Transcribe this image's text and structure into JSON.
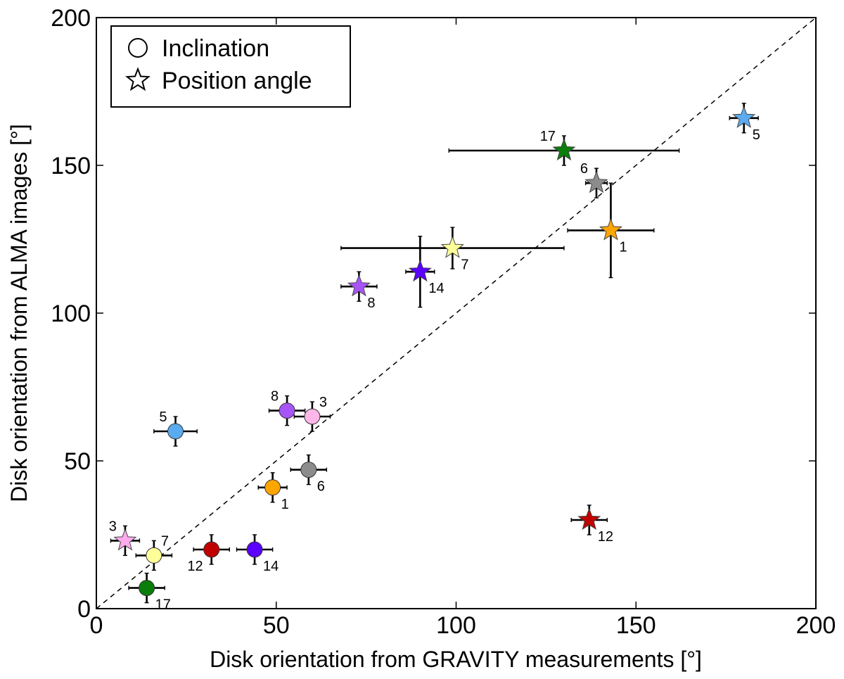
{
  "chart_data": {
    "type": "scatter",
    "xlabel": "Disk orientation from GRAVITY measurements [°]",
    "ylabel": "Disk orientation from ALMA images [°]",
    "xlim": [
      0,
      200
    ],
    "ylim": [
      0,
      200
    ],
    "xticks": [
      "0",
      "50",
      "100",
      "150",
      "200"
    ],
    "yticks": [
      "0",
      "50",
      "100",
      "150",
      "200"
    ],
    "reference_line": "y = x (dashed)",
    "legend": {
      "position": "top-left",
      "entries": [
        {
          "marker": "circle",
          "label": "Inclination"
        },
        {
          "marker": "star",
          "label": "Position angle"
        }
      ]
    },
    "series": [
      {
        "name": "Inclination",
        "marker": "circle",
        "points": [
          {
            "id": "1",
            "x": 49,
            "y": 41,
            "xerr": 4,
            "yerr": 5,
            "color": "#ffa500",
            "label_pos": "br"
          },
          {
            "id": "3",
            "x": 60,
            "y": 65,
            "xerr": 5,
            "yerr": 5,
            "color": "#ffb6e8",
            "label_pos": "tr"
          },
          {
            "id": "5",
            "x": 22,
            "y": 60,
            "xerr": 6,
            "yerr": 5,
            "color": "#5aabef",
            "label_pos": "tl"
          },
          {
            "id": "6",
            "x": 59,
            "y": 47,
            "xerr": 5,
            "yerr": 5,
            "color": "#8c8c8c",
            "label_pos": "br"
          },
          {
            "id": "7",
            "x": 16,
            "y": 18,
            "xerr": 5,
            "yerr": 5,
            "color": "#ffff99",
            "label_pos": "tr"
          },
          {
            "id": "8",
            "x": 53,
            "y": 67,
            "xerr": 5,
            "yerr": 5,
            "color": "#a855f7",
            "label_pos": "tl"
          },
          {
            "id": "12",
            "x": 32,
            "y": 20,
            "xerr": 5,
            "yerr": 5,
            "color": "#c00000",
            "label_pos": "bl"
          },
          {
            "id": "14",
            "x": 44,
            "y": 20,
            "xerr": 5,
            "yerr": 5,
            "color": "#5b00ff",
            "label_pos": "br"
          },
          {
            "id": "17",
            "x": 14,
            "y": 7,
            "xerr": 5,
            "yerr": 5,
            "color": "#0a7d0a",
            "label_pos": "br"
          }
        ]
      },
      {
        "name": "Position angle",
        "marker": "star",
        "points": [
          {
            "id": "1",
            "x": 143,
            "y": 128,
            "xerr": 12,
            "yerr": 16,
            "color": "#ffa500",
            "label_pos": "br"
          },
          {
            "id": "3",
            "x": 8,
            "y": 23,
            "xerr": 4,
            "yerr": 5,
            "color": "#ffaaee",
            "label_pos": "tl"
          },
          {
            "id": "5",
            "x": 180,
            "y": 166,
            "xerr": 4,
            "yerr": 5,
            "color": "#5aabef",
            "label_pos": "br"
          },
          {
            "id": "6",
            "x": 139,
            "y": 144,
            "xerr": 3,
            "yerr": 5,
            "color": "#8c8c8c",
            "label_pos": "tl"
          },
          {
            "id": "7",
            "x": 99,
            "y": 122,
            "xerr": 31,
            "yerr": 7,
            "color": "#ffff99",
            "label_pos": "br"
          },
          {
            "id": "8",
            "x": 73,
            "y": 109,
            "xerr": 5,
            "yerr": 5,
            "color": "#a855f7",
            "label_pos": "br"
          },
          {
            "id": "12",
            "x": 137,
            "y": 30,
            "xerr": 5,
            "yerr": 5,
            "color": "#c00000",
            "label_pos": "br"
          },
          {
            "id": "14",
            "x": 90,
            "y": 114,
            "xerr": 4,
            "yerr": 12,
            "color": "#5b00ff",
            "label_pos": "br"
          },
          {
            "id": "17",
            "x": 130,
            "y": 155,
            "xerr": 32,
            "yerr": 5,
            "color": "#0a7d0a",
            "label_pos": "tl"
          }
        ]
      }
    ]
  }
}
